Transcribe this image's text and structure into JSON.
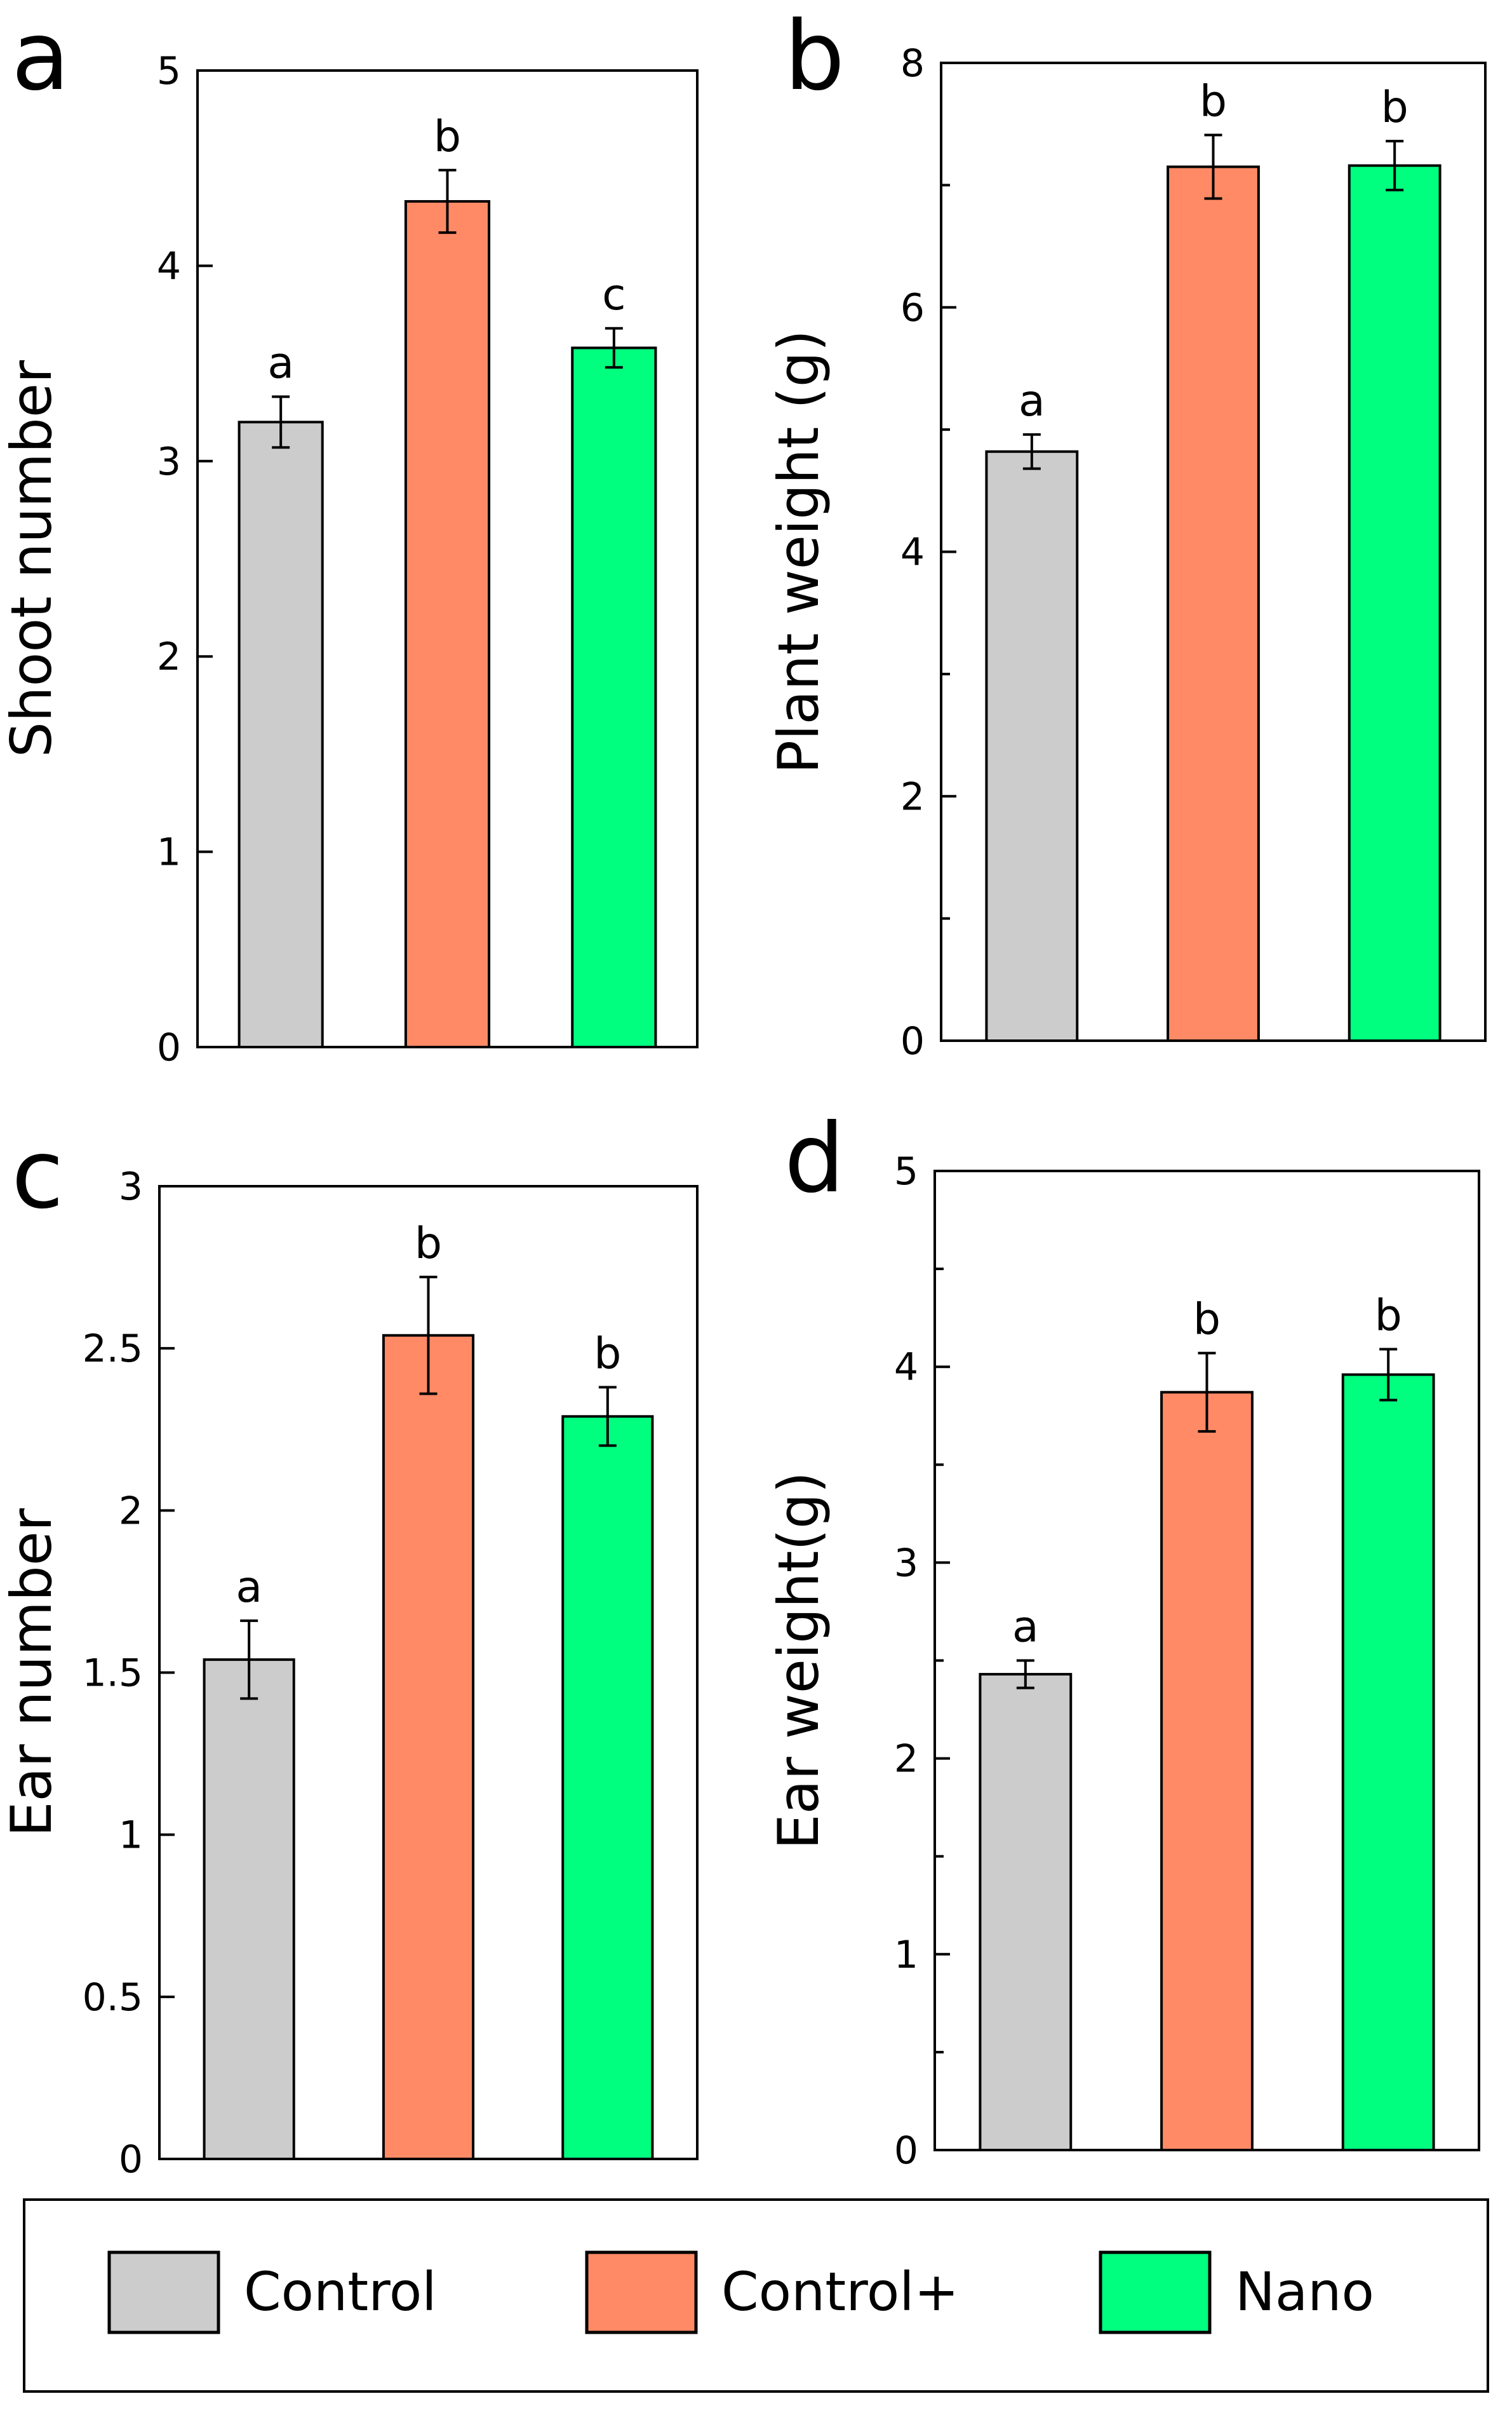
{
  "colors": {
    "Control": "#cccccc",
    "Control+": "#ff8a65",
    "Nano": "#00ff7f",
    "stroke": "#000000"
  },
  "legend": {
    "placement": "bottom",
    "items": [
      "Control",
      "Control+",
      "Nano"
    ]
  },
  "chart_data": [
    {
      "panel_letter": "a",
      "type": "bar",
      "categories": [
        "Control",
        "Control+",
        "Nano"
      ],
      "values": [
        3.2,
        4.33,
        3.58
      ],
      "errors": [
        0.13,
        0.16,
        0.1
      ],
      "significance": [
        "a",
        "b",
        "c"
      ],
      "ylabel": "Shoot number",
      "ylim": [
        0,
        5
      ],
      "ticks": [
        "0",
        "1",
        "2",
        "3",
        "4",
        "5"
      ],
      "minor_ticks": false,
      "grid": false
    },
    {
      "panel_letter": "b",
      "type": "bar",
      "categories": [
        "Control",
        "Control+",
        "Nano"
      ],
      "values": [
        4.82,
        7.15,
        7.16
      ],
      "errors": [
        0.14,
        0.26,
        0.2
      ],
      "significance": [
        "a",
        "b",
        "b"
      ],
      "ylabel": "Plant weight (g)",
      "ylim": [
        0,
        8
      ],
      "ticks": [
        "0",
        "2",
        "4",
        "6",
        "8"
      ],
      "minor_ticks": true,
      "grid": false
    },
    {
      "panel_letter": "c",
      "type": "bar",
      "categories": [
        "Control",
        "Control+",
        "Nano"
      ],
      "values": [
        1.54,
        2.54,
        2.29
      ],
      "errors": [
        0.12,
        0.18,
        0.09
      ],
      "significance": [
        "a",
        "b",
        "b"
      ],
      "ylabel": "Ear number",
      "ylim": [
        0,
        3
      ],
      "ticks": [
        "0",
        "0.5",
        "1",
        "1.5",
        "2",
        "2.5",
        "3"
      ],
      "minor_ticks": false,
      "grid": false
    },
    {
      "panel_letter": "d",
      "type": "bar",
      "categories": [
        "Control",
        "Control+",
        "Nano"
      ],
      "values": [
        2.43,
        3.87,
        3.96
      ],
      "errors": [
        0.07,
        0.2,
        0.13
      ],
      "significance": [
        "a",
        "b",
        "b"
      ],
      "ylabel": "Ear weight(g)",
      "ylim": [
        0,
        5
      ],
      "ticks": [
        "0",
        "1",
        "2",
        "3",
        "4",
        "5"
      ],
      "minor_ticks": true,
      "grid": false
    }
  ]
}
